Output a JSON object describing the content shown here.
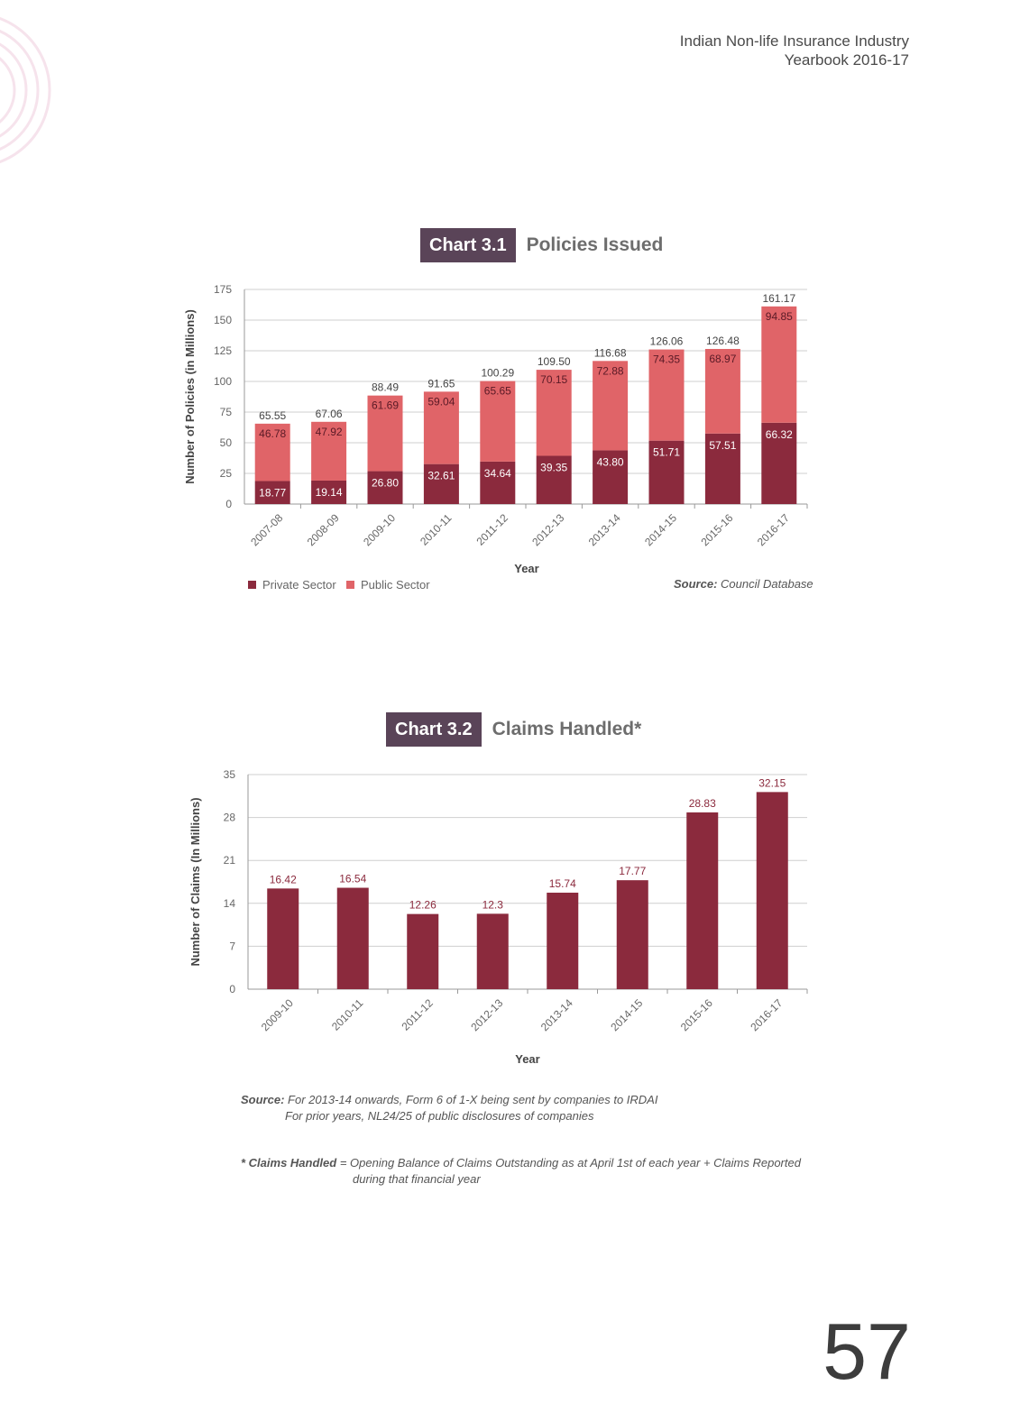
{
  "header": {
    "line1": "Indian Non-life Insurance Industry",
    "line2": "Yearbook 2016-17"
  },
  "colors": {
    "private": "#8b2a3d",
    "public": "#e06468",
    "title_box": "#5a4458"
  },
  "chart1_heading": {
    "number": "Chart 3.1",
    "name": "Policies Issued"
  },
  "chart2_heading": {
    "number": "Chart 3.2",
    "name": "Claims Handled*"
  },
  "chart_data": [
    {
      "type": "bar",
      "stacked": true,
      "categories": [
        "2007-08",
        "2008-09",
        "2009-10",
        "2010-11",
        "2011-12",
        "2012-13",
        "2013-14",
        "2014-15",
        "2015-16",
        "2016-17"
      ],
      "series": [
        {
          "name": "Private Sector",
          "values": [
            "18.77",
            "19.14",
            "26.80",
            "32.61",
            "34.64",
            "39.35",
            "43.80",
            "51.71",
            "57.51",
            "66.32"
          ]
        },
        {
          "name": "Public Sector",
          "values": [
            "46.78",
            "47.92",
            "61.69",
            "59.04",
            "65.65",
            "70.15",
            "72.88",
            "74.35",
            "68.97",
            "94.85"
          ]
        }
      ],
      "totals": [
        "65.55",
        "67.06",
        "88.49",
        "91.65",
        "100.29",
        "109.50",
        "116.68",
        "126.06",
        "126.48",
        "161.17"
      ],
      "xlabel": "Year",
      "ylabel": "Number of Policies (in Millions)",
      "ylim": [
        0,
        175
      ],
      "yticks": [
        "0",
        "25",
        "50",
        "75",
        "100",
        "125",
        "150",
        "175"
      ],
      "grid": true,
      "legend_position": "bottom-left",
      "source_label": "Source:",
      "source_text": "Council Database"
    },
    {
      "type": "bar",
      "categories": [
        "2009-10",
        "2010-11",
        "2011-12",
        "2012-13",
        "2013-14",
        "2014-15",
        "2015-16",
        "2016-17"
      ],
      "values": [
        "16.42",
        "16.54",
        "12.26",
        "12.3",
        "15.74",
        "17.77",
        "28.83",
        "32.15"
      ],
      "xlabel": "Year",
      "ylabel": "Number of Claims (In Millions)",
      "ylim": [
        0,
        35
      ],
      "yticks": [
        "0",
        "7",
        "14",
        "21",
        "28",
        "35"
      ],
      "grid": true
    }
  ],
  "notes": {
    "source_label": "Source:",
    "source_line1": "For 2013-14 onwards, Form 6 of 1-X being sent by companies to IRDAI",
    "source_line2": "For prior years, NL24/25 of public disclosures of companies",
    "footnote_label": "* Claims Handled",
    "footnote_eq": "=",
    "footnote_line1": "Opening Balance of Claims Outstanding as at April 1st of each year + Claims Reported",
    "footnote_line2": "during that financial year"
  },
  "page_number": "57"
}
